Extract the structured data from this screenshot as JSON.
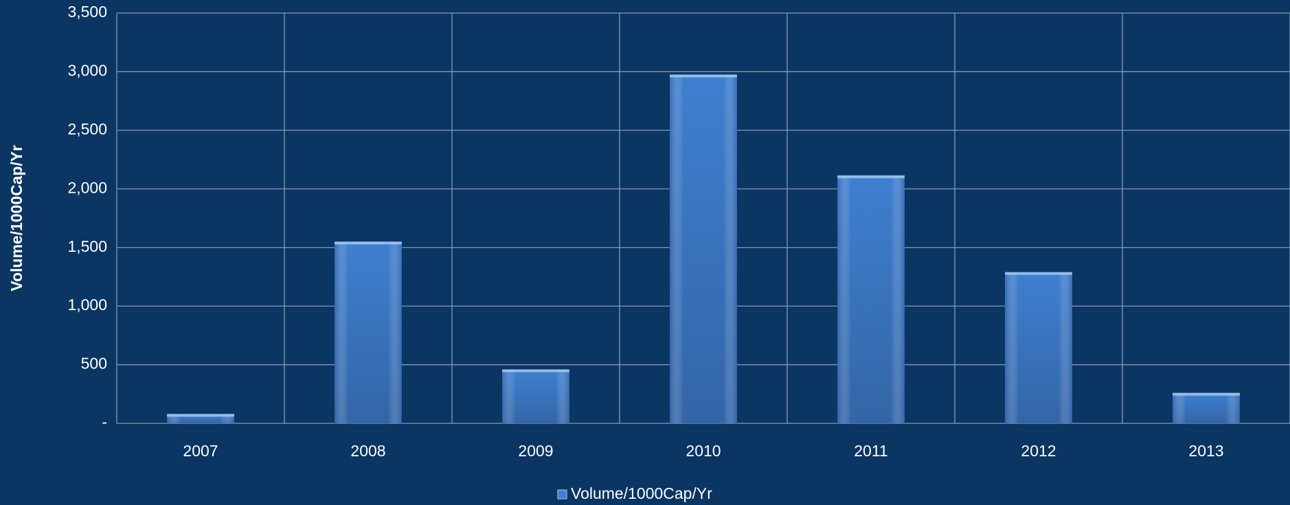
{
  "chart_data": {
    "type": "bar",
    "y_axis_label": "Volume/1000Cap/Yr",
    "categories": [
      "2007",
      "2008",
      "2009",
      "2010",
      "2011",
      "2012",
      "2013"
    ],
    "series": [
      {
        "name": "Volume/1000Cap/Yr",
        "color": "#3f7fd0",
        "values": [
          80,
          1550,
          460,
          2975,
          2115,
          1290,
          260
        ]
      }
    ],
    "ylim": [
      0,
      3500
    ],
    "yticks": [
      {
        "value": 0,
        "label": "-"
      },
      500,
      {
        "value": 1000,
        "label": "1,000"
      },
      {
        "value": 1500,
        "label": "1,500"
      },
      {
        "value": 2000,
        "label": "2,000"
      },
      {
        "value": 2500,
        "label": "2,500"
      },
      {
        "value": 3000,
        "label": "3,000"
      },
      {
        "value": 3500,
        "label": "3,500"
      }
    ],
    "grid": true,
    "legend": "bottom"
  }
}
